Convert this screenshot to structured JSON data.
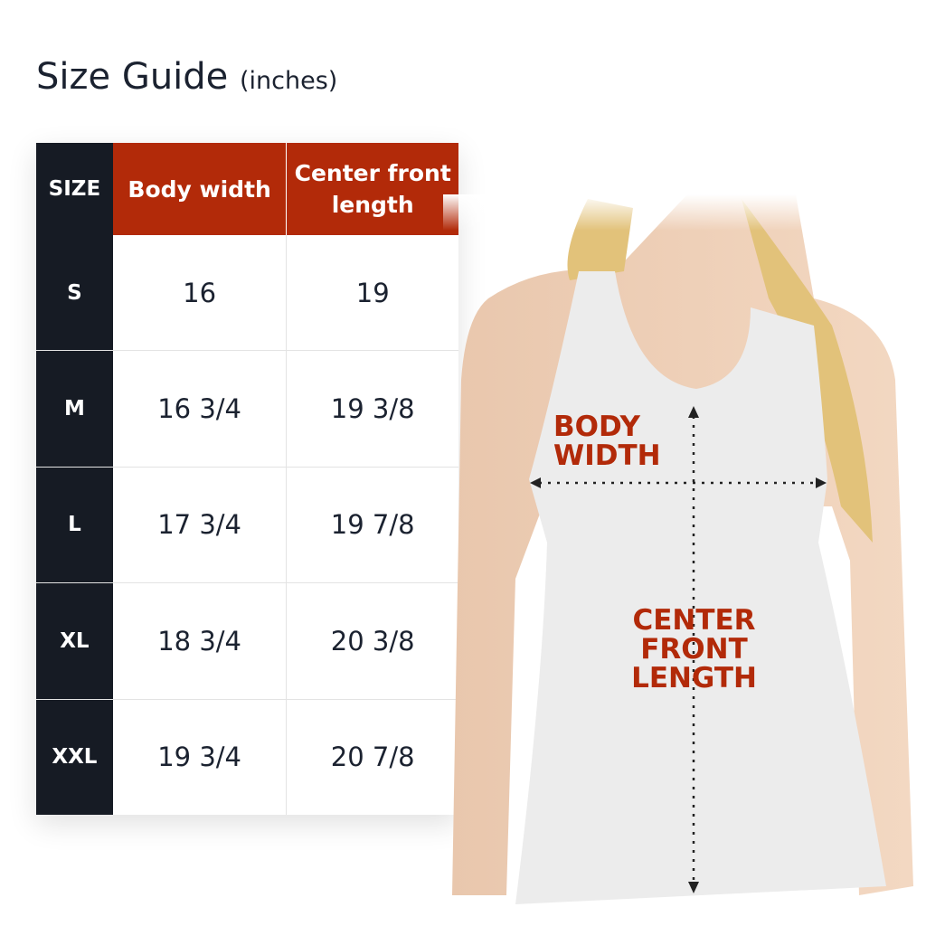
{
  "title": {
    "main": "Size Guide",
    "unit": "(inches)"
  },
  "colors": {
    "header_dark": "#161b24",
    "header_accent": "#b22a09"
  },
  "table": {
    "headers": [
      "SIZE",
      "Body width",
      "Center front length"
    ],
    "rows": [
      [
        "S",
        "16",
        "19"
      ],
      [
        "M",
        "16 3/4",
        "19 3/8"
      ],
      [
        "L",
        "17 3/4",
        "19 7/8"
      ],
      [
        "XL",
        "18 3/4",
        "20 3/8"
      ],
      [
        "XXL",
        "19 3/4",
        "20 7/8"
      ]
    ]
  },
  "diagram": {
    "body_width_label": "BODY WIDTH",
    "center_front_length_label": "CENTER FRONT LENGTH"
  }
}
